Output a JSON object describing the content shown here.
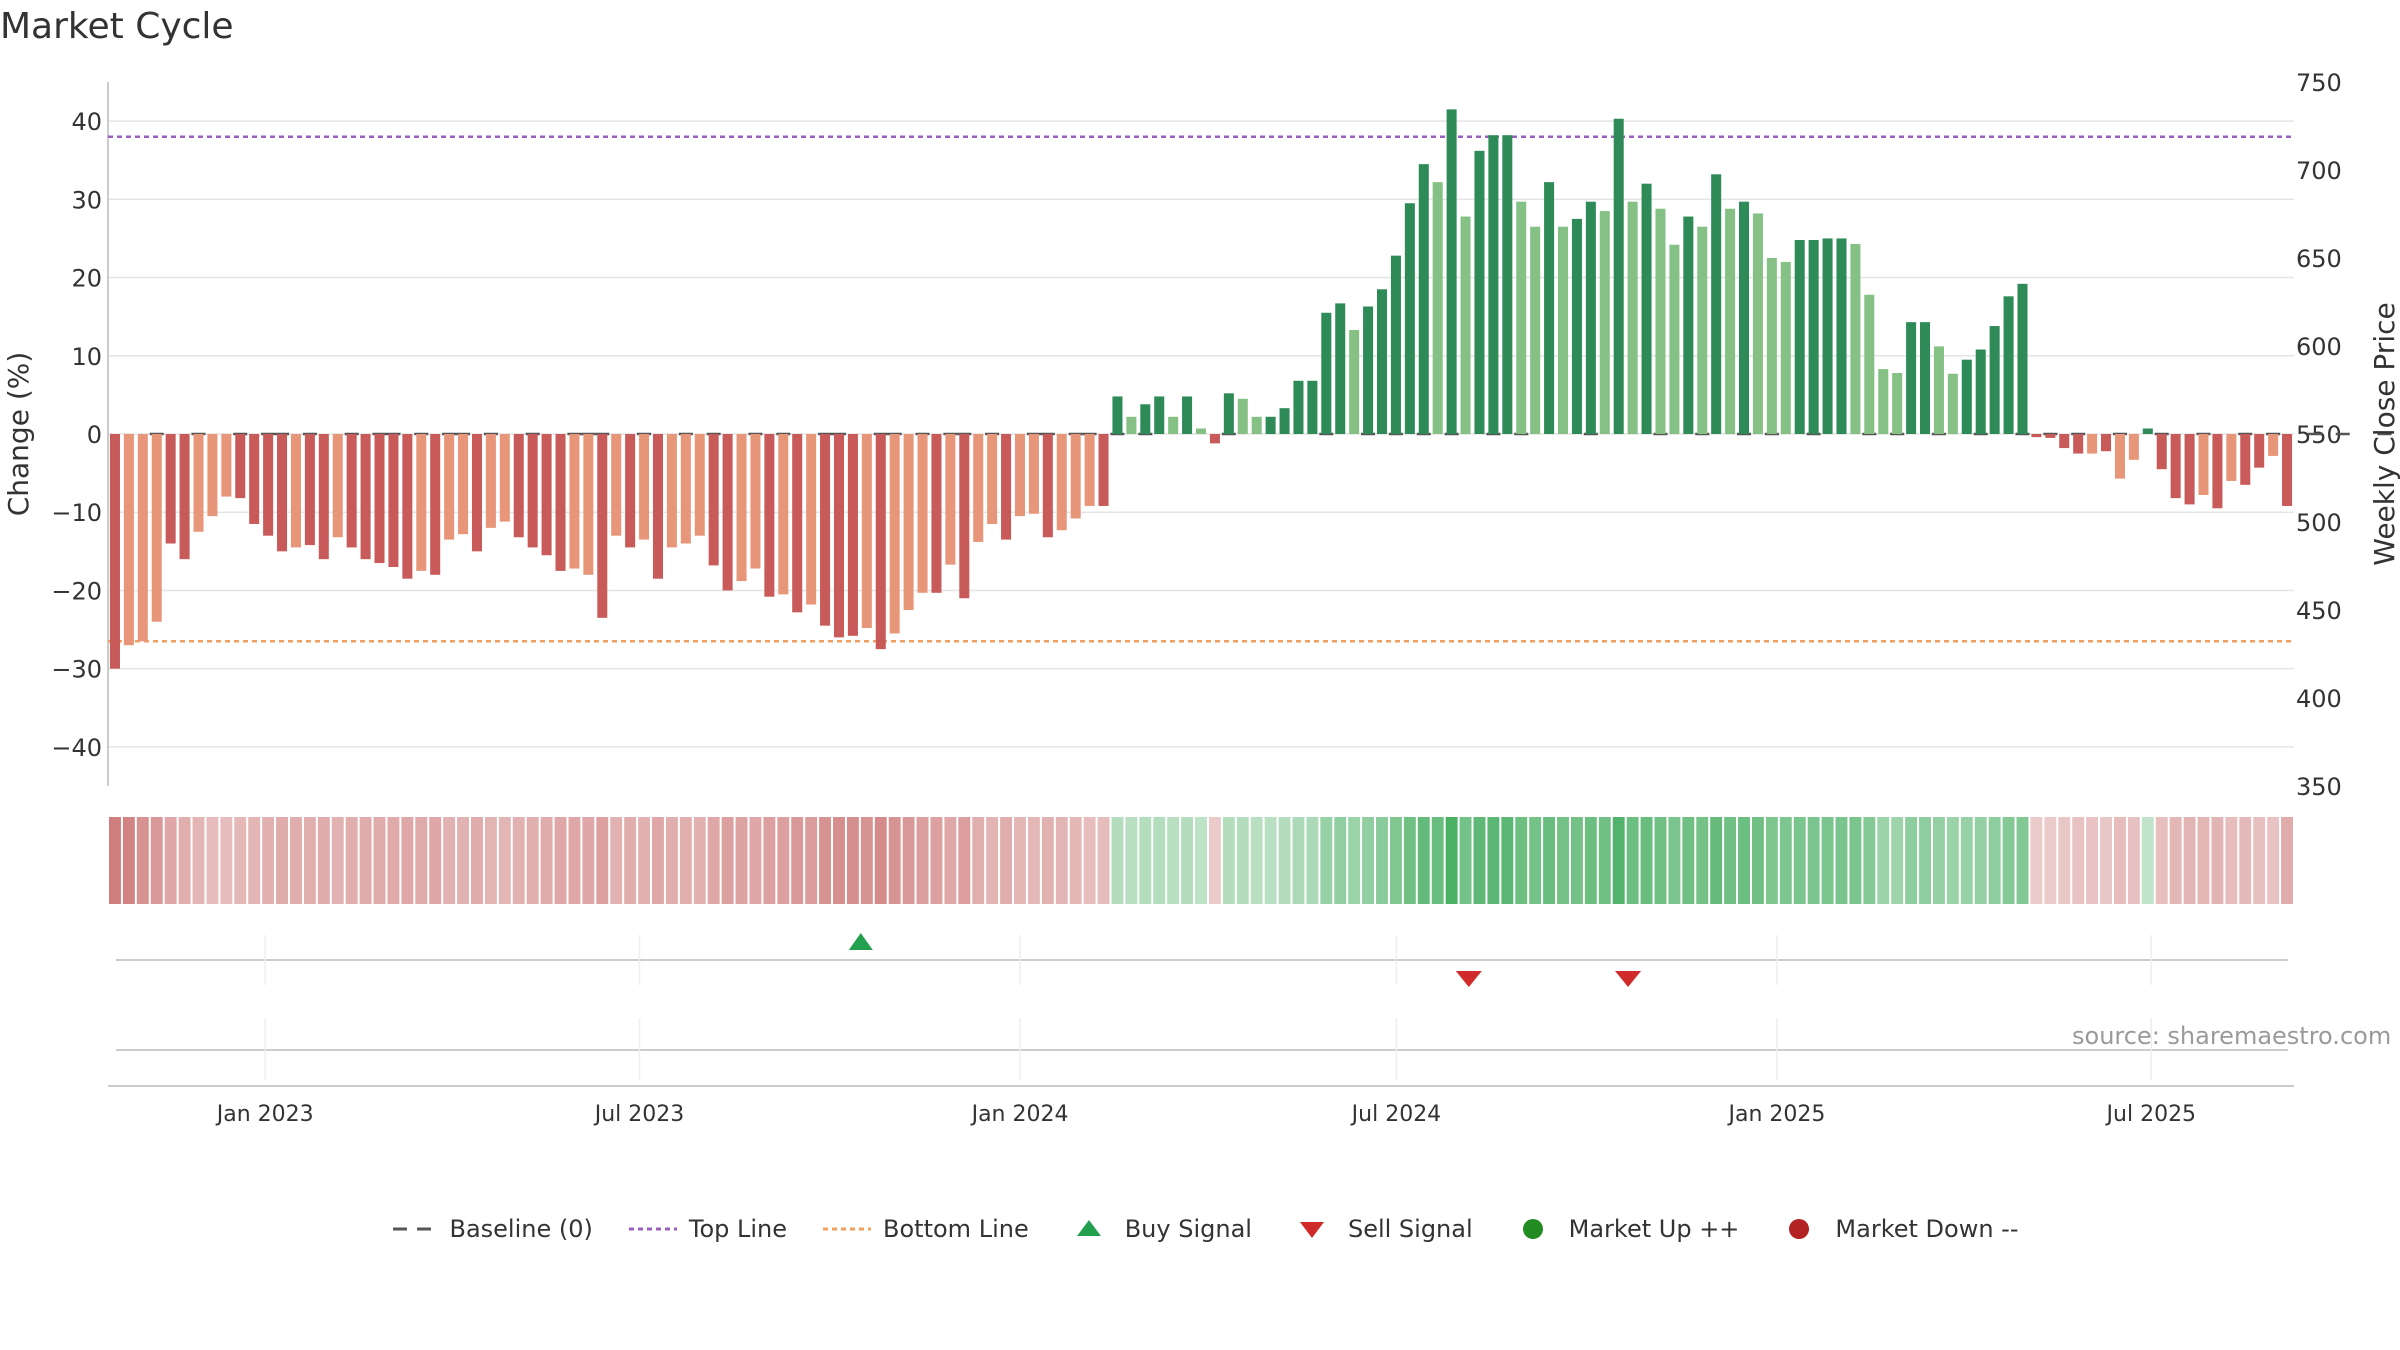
{
  "title": "Market Cycle",
  "source": "source: sharemaestro.com",
  "legend": {
    "baseline": "Baseline (0)",
    "top": "Top Line",
    "bottom": "Bottom Line",
    "buy": "Buy Signal",
    "sell": "Sell Signal",
    "up": "Market Up ++",
    "down": "Market Down --"
  },
  "colors": {
    "bear_strong": "#c85a5a",
    "bear_light": "#e8967a",
    "bull_strong": "#2e8b57",
    "bull_light": "#85c185",
    "top_line": "#9b5fc0",
    "bottom_line": "#f0a060",
    "baseline": "#555555",
    "buy": "#22a050",
    "sell": "#d02a2a",
    "market_up": "#228b22",
    "market_down": "#b22222"
  },
  "chart_data": {
    "type": "bar",
    "ylabel_left": "Change (%)",
    "ylabel_right": "Weekly Close Price",
    "ylim_left": [
      -45,
      45
    ],
    "ylim_right": [
      350,
      750
    ],
    "yticks_left": [
      40,
      30,
      20,
      10,
      0,
      -10,
      -20,
      -30,
      -40
    ],
    "yticks_right": [
      750,
      700,
      650,
      600,
      550,
      500,
      450,
      400,
      350
    ],
    "date_range": [
      "2022-10-17",
      "2025-09-08"
    ],
    "x_ticks": [
      {
        "date": "2023-01-01",
        "label": "Jan 2023"
      },
      {
        "date": "2023-07-01",
        "label": "Jul 2023"
      },
      {
        "date": "2024-01-01",
        "label": "Jan 2024"
      },
      {
        "date": "2024-07-01",
        "label": "Jul 2024"
      },
      {
        "date": "2025-01-01",
        "label": "Jan 2025"
      },
      {
        "date": "2025-07-01",
        "label": "Jul 2025"
      }
    ],
    "top_line": 38,
    "bottom_line": -26.5,
    "grid": true,
    "values": [
      -30.0,
      -27.0,
      -26.5,
      -24.0,
      -14.0,
      -16.0,
      -12.5,
      -10.5,
      -8.0,
      -8.2,
      -11.5,
      -13.0,
      -15.0,
      -14.5,
      -14.2,
      -16.0,
      -13.2,
      -14.5,
      -16.0,
      -16.5,
      -17.0,
      -18.5,
      -17.5,
      -18.0,
      -13.5,
      -12.8,
      -15.0,
      -12.0,
      -11.2,
      -13.2,
      -14.5,
      -15.5,
      -17.5,
      -17.2,
      -18.0,
      -23.5,
      -13.0,
      -14.5,
      -13.5,
      -18.5,
      -14.5,
      -14.0,
      -13.0,
      -16.8,
      -20.0,
      -18.8,
      -17.2,
      -20.8,
      -20.5,
      -22.8,
      -21.8,
      -24.5,
      -26.0,
      -25.8,
      -24.8,
      -27.5,
      -25.5,
      -22.5,
      -20.3,
      -20.3,
      -16.7,
      -21.0,
      -13.8,
      -11.5,
      -13.5,
      -10.5,
      -10.2,
      -13.2,
      -12.3,
      -10.8,
      -9.2,
      -9.2,
      4.8,
      2.2,
      3.8,
      4.8,
      2.2,
      4.8,
      0.7,
      -1.2,
      5.2,
      4.5,
      2.2,
      2.2,
      3.3,
      6.8,
      6.8,
      15.5,
      16.7,
      13.3,
      16.3,
      18.5,
      22.8,
      29.5,
      34.5,
      32.2,
      41.5,
      27.8,
      36.2,
      38.2,
      38.2,
      29.7,
      26.5,
      32.2,
      26.5,
      27.5,
      29.7,
      28.5,
      40.3,
      29.7,
      32.0,
      28.8,
      24.2,
      27.8,
      26.5,
      33.2,
      28.8,
      29.7,
      28.2,
      22.5,
      22.0,
      24.8,
      24.8,
      25.0,
      25.0,
      24.3,
      17.8,
      8.3,
      7.8,
      14.3,
      14.3,
      11.2,
      7.7,
      9.5,
      10.8,
      13.8,
      17.6,
      19.2,
      -0.4,
      -0.5,
      -1.8,
      -2.5,
      -2.5,
      -2.2,
      -5.7,
      -3.3,
      0.7,
      -4.5,
      -8.2,
      -9.0,
      -7.8,
      -9.5,
      -6.0,
      -6.5,
      -4.3,
      -2.8,
      -9.2
    ],
    "bar_shade": [
      "s",
      "l",
      "l",
      "l",
      "s",
      "s",
      "l",
      "l",
      "l",
      "s",
      "s",
      "s",
      "s",
      "l",
      "s",
      "s",
      "l",
      "s",
      "s",
      "s",
      "s",
      "s",
      "l",
      "s",
      "l",
      "l",
      "s",
      "l",
      "l",
      "s",
      "s",
      "s",
      "s",
      "l",
      "l",
      "s",
      "l",
      "s",
      "l",
      "s",
      "l",
      "l",
      "l",
      "s",
      "s",
      "l",
      "l",
      "s",
      "l",
      "s",
      "l",
      "s",
      "s",
      "s",
      "l",
      "s",
      "l",
      "l",
      "l",
      "s",
      "l",
      "s",
      "l",
      "l",
      "s",
      "l",
      "l",
      "s",
      "l",
      "l",
      "l",
      "s",
      "s",
      "l",
      "s",
      "s",
      "l",
      "s",
      "l",
      "s",
      "s",
      "l",
      "l",
      "s",
      "s",
      "s",
      "s",
      "s",
      "s",
      "l",
      "s",
      "s",
      "s",
      "s",
      "s",
      "l",
      "s",
      "l",
      "s",
      "s",
      "s",
      "l",
      "l",
      "s",
      "l",
      "s",
      "s",
      "l",
      "s",
      "l",
      "s",
      "l",
      "l",
      "s",
      "l",
      "s",
      "l",
      "s",
      "l",
      "l",
      "l",
      "s",
      "s",
      "s",
      "s",
      "l",
      "l",
      "l",
      "l",
      "s",
      "s",
      "l",
      "l",
      "s",
      "s",
      "s",
      "s",
      "s",
      "s",
      "s",
      "s",
      "s",
      "l",
      "s",
      "l",
      "l",
      "s",
      "s",
      "s",
      "s",
      "l",
      "s",
      "l",
      "s",
      "s",
      "l",
      "s",
      "l",
      "s"
    ],
    "heat_strength": [
      0.75,
      0.7,
      0.6,
      0.55,
      0.45,
      0.4,
      0.35,
      0.3,
      0.3,
      0.33,
      0.35,
      0.38,
      0.42,
      0.4,
      0.4,
      0.42,
      0.38,
      0.4,
      0.42,
      0.42,
      0.42,
      0.45,
      0.43,
      0.45,
      0.38,
      0.38,
      0.42,
      0.36,
      0.35,
      0.38,
      0.4,
      0.42,
      0.45,
      0.45,
      0.45,
      0.5,
      0.38,
      0.4,
      0.38,
      0.45,
      0.4,
      0.4,
      0.38,
      0.45,
      0.5,
      0.48,
      0.45,
      0.5,
      0.5,
      0.55,
      0.53,
      0.6,
      0.62,
      0.62,
      0.6,
      0.65,
      0.6,
      0.55,
      0.52,
      0.5,
      0.45,
      0.52,
      0.4,
      0.36,
      0.4,
      0.34,
      0.33,
      0.38,
      0.36,
      0.33,
      0.3,
      0.3,
      0.28,
      0.25,
      0.28,
      0.28,
      0.25,
      0.28,
      0.22,
      0.2,
      0.28,
      0.28,
      0.25,
      0.25,
      0.28,
      0.32,
      0.32,
      0.45,
      0.48,
      0.42,
      0.48,
      0.52,
      0.58,
      0.68,
      0.75,
      0.72,
      0.9,
      0.65,
      0.78,
      0.8,
      0.8,
      0.7,
      0.65,
      0.72,
      0.65,
      0.66,
      0.7,
      0.68,
      0.85,
      0.7,
      0.72,
      0.68,
      0.62,
      0.68,
      0.65,
      0.74,
      0.68,
      0.7,
      0.68,
      0.6,
      0.6,
      0.62,
      0.62,
      0.62,
      0.62,
      0.62,
      0.55,
      0.42,
      0.4,
      0.5,
      0.5,
      0.46,
      0.42,
      0.44,
      0.46,
      0.5,
      0.55,
      0.57,
      0.2,
      0.2,
      0.22,
      0.25,
      0.25,
      0.22,
      0.3,
      0.26,
      0.2,
      0.28,
      0.34,
      0.36,
      0.34,
      0.36,
      0.3,
      0.32,
      0.28,
      0.25,
      0.42
    ],
    "baseline_dash_indices": [
      3,
      6,
      9,
      11,
      12,
      14,
      17,
      19,
      20,
      22,
      24,
      25,
      27,
      30,
      33,
      34,
      35,
      38,
      41,
      43,
      46,
      48,
      51,
      52,
      55,
      56,
      58,
      60,
      61,
      63,
      66,
      67,
      69,
      70,
      72,
      74,
      80,
      87,
      90,
      92,
      94,
      96,
      99,
      101,
      106,
      111,
      114,
      117,
      119,
      122,
      126,
      128,
      131,
      134,
      137,
      139,
      141,
      144,
      147,
      150,
      153,
      155,
      158,
      160,
      163
    ],
    "buy_signals": [
      "2023-10-16"
    ],
    "sell_signals": [
      "2024-08-05",
      "2024-10-21"
    ]
  }
}
